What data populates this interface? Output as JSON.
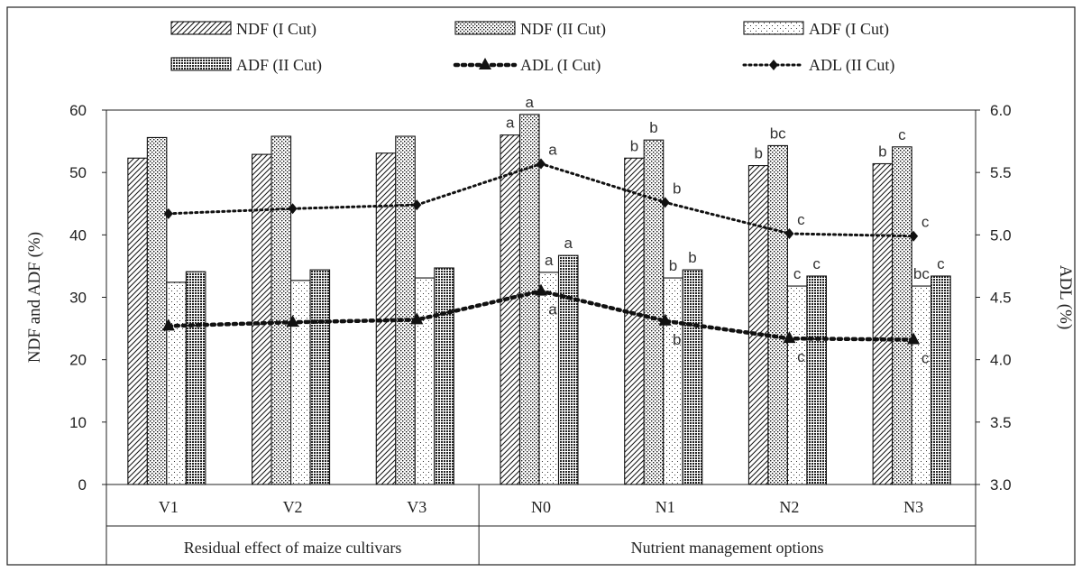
{
  "chart_data": {
    "type": "bar",
    "categories": [
      "V1",
      "V2",
      "V3",
      "N0",
      "N1",
      "N2",
      "N3"
    ],
    "groups": [
      {
        "label": "Residual effect of maize cultivars",
        "categories": [
          "V1",
          "V2",
          "V3"
        ]
      },
      {
        "label": "Nutrient management options",
        "categories": [
          "N0",
          "N1",
          "N2",
          "N3"
        ]
      }
    ],
    "series": [
      {
        "name": "NDF (I Cut)",
        "kind": "bar",
        "axis": "left",
        "pattern": "diagonal-hatch",
        "values": [
          52.3,
          52.9,
          53.1,
          56.0,
          52.3,
          51.1,
          51.4
        ],
        "letters": [
          "",
          "",
          "",
          "a",
          "b",
          "b",
          "b"
        ]
      },
      {
        "name": "NDF (II Cut)",
        "kind": "bar",
        "axis": "left",
        "pattern": "dense-dots",
        "values": [
          55.6,
          55.8,
          55.8,
          59.3,
          55.2,
          54.3,
          54.1
        ],
        "letters": [
          "",
          "",
          "",
          "a",
          "b",
          "bc",
          "c"
        ]
      },
      {
        "name": "ADF (I Cut)",
        "kind": "bar",
        "axis": "left",
        "pattern": "sparse-dots",
        "values": [
          32.4,
          32.7,
          33.1,
          34.0,
          33.1,
          31.8,
          31.8
        ],
        "letters": [
          "",
          "",
          "",
          "a",
          "b",
          "c",
          "bc"
        ]
      },
      {
        "name": "ADF (II Cut)",
        "kind": "bar",
        "axis": "left",
        "pattern": "grid",
        "values": [
          34.1,
          34.4,
          34.7,
          36.7,
          34.4,
          33.4,
          33.4
        ],
        "letters": [
          "",
          "",
          "",
          "a",
          "b",
          "c",
          "c"
        ]
      },
      {
        "name": "ADL (I Cut)",
        "kind": "line",
        "axis": "right",
        "marker": "triangle",
        "values": [
          4.27,
          4.3,
          4.32,
          4.55,
          4.31,
          4.17,
          4.16
        ],
        "letters": [
          "",
          "",
          "",
          "a",
          "b",
          "c",
          "c"
        ]
      },
      {
        "name": "ADL (II Cut)",
        "kind": "line",
        "axis": "right",
        "marker": "diamond",
        "values": [
          5.17,
          5.21,
          5.24,
          5.57,
          5.26,
          5.01,
          4.99
        ],
        "letters": [
          "",
          "",
          "",
          "a",
          "b",
          "c",
          "c"
        ]
      }
    ],
    "ylabel": "NDF  and ADF (%)",
    "y2label": "ADL (%)",
    "ylim": [
      0,
      60
    ],
    "y2lim": [
      3.0,
      6.0
    ],
    "yticks": [
      "0",
      "10",
      "20",
      "30",
      "40",
      "50",
      "60"
    ],
    "y2ticks": [
      "3.0",
      "3.5",
      "4.0",
      "4.5",
      "5.0",
      "5.5",
      "6.0"
    ],
    "grid": false,
    "legend_position": "top"
  }
}
